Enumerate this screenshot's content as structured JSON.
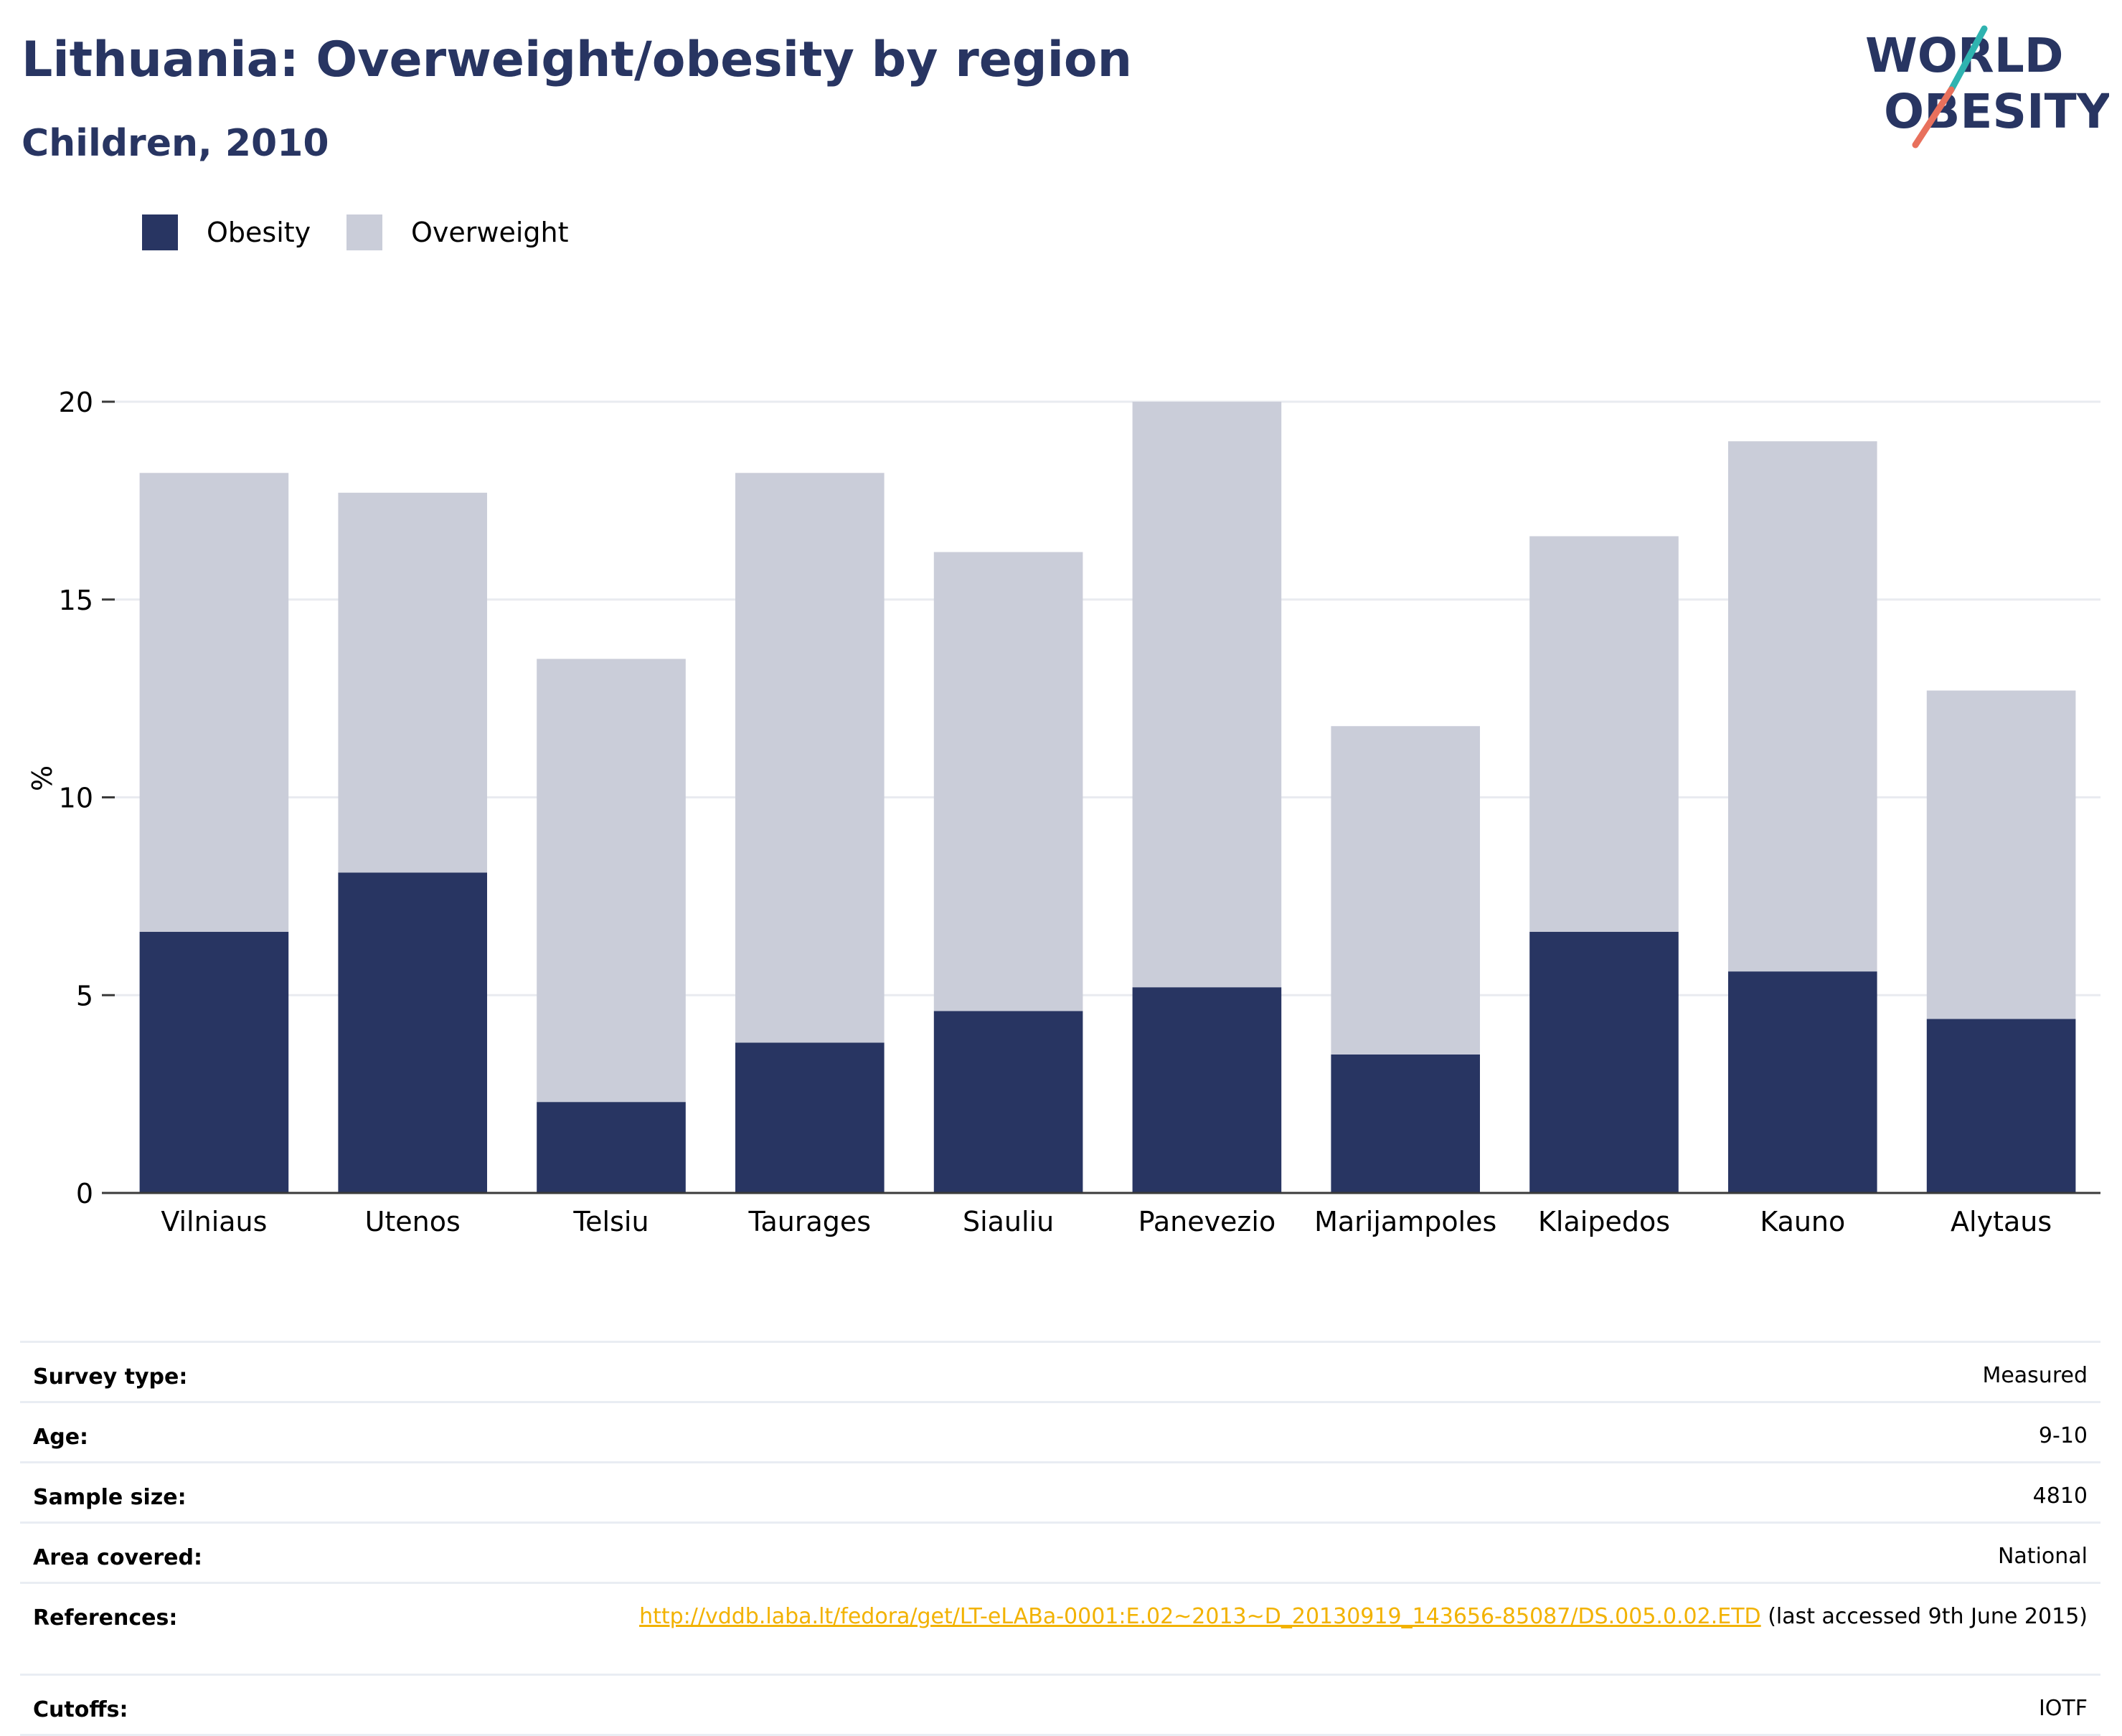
{
  "header": {
    "title": "Lithuania: Overweight/obesity by region",
    "subtitle": "Children, 2010",
    "logo_line1": "WORLD",
    "logo_line2": "OBESITY"
  },
  "colors": {
    "obesity": "#283562",
    "overweight": "#cacdd9",
    "title": "#283562",
    "link": "#f2b200",
    "logo_teal": "#2fb3b0",
    "logo_red": "#e8705c"
  },
  "chart_data": {
    "type": "bar",
    "stacked": true,
    "categories": [
      "Vilniaus",
      "Utenos",
      "Telsiu",
      "Taurages",
      "Siauliu",
      "Panevezio",
      "Marijampoles",
      "Klaipedos",
      "Kauno",
      "Alytaus"
    ],
    "series": [
      {
        "name": "Obesity",
        "values": [
          6.6,
          8.1,
          2.3,
          3.8,
          4.6,
          5.2,
          3.5,
          6.6,
          5.6,
          4.4
        ]
      },
      {
        "name": "Overweight",
        "values": [
          11.6,
          9.6,
          11.2,
          14.4,
          11.6,
          14.8,
          8.3,
          10.0,
          13.4,
          8.3
        ]
      }
    ],
    "ylabel": "%",
    "ylim": [
      0,
      20
    ],
    "yticks": [
      0,
      5,
      10,
      15,
      20
    ],
    "grid": true,
    "legend_position": "top-left"
  },
  "info": {
    "rows": [
      {
        "label": "Survey type:",
        "value": "Measured"
      },
      {
        "label": "Age:",
        "value": "9-10"
      },
      {
        "label": "Sample size:",
        "value": "4810"
      },
      {
        "label": "Area covered:",
        "value": "National"
      },
      {
        "label": "References:",
        "link": "http://vddb.laba.lt/fedora/get/LT-eLABa-0001:E.02~2013~D_20130919_143656-85087/DS.005.0.02.ETD",
        "value": " (last accessed 9th June 2015)"
      },
      {
        "label": "Cutoffs:",
        "value": "IOTF"
      }
    ]
  }
}
